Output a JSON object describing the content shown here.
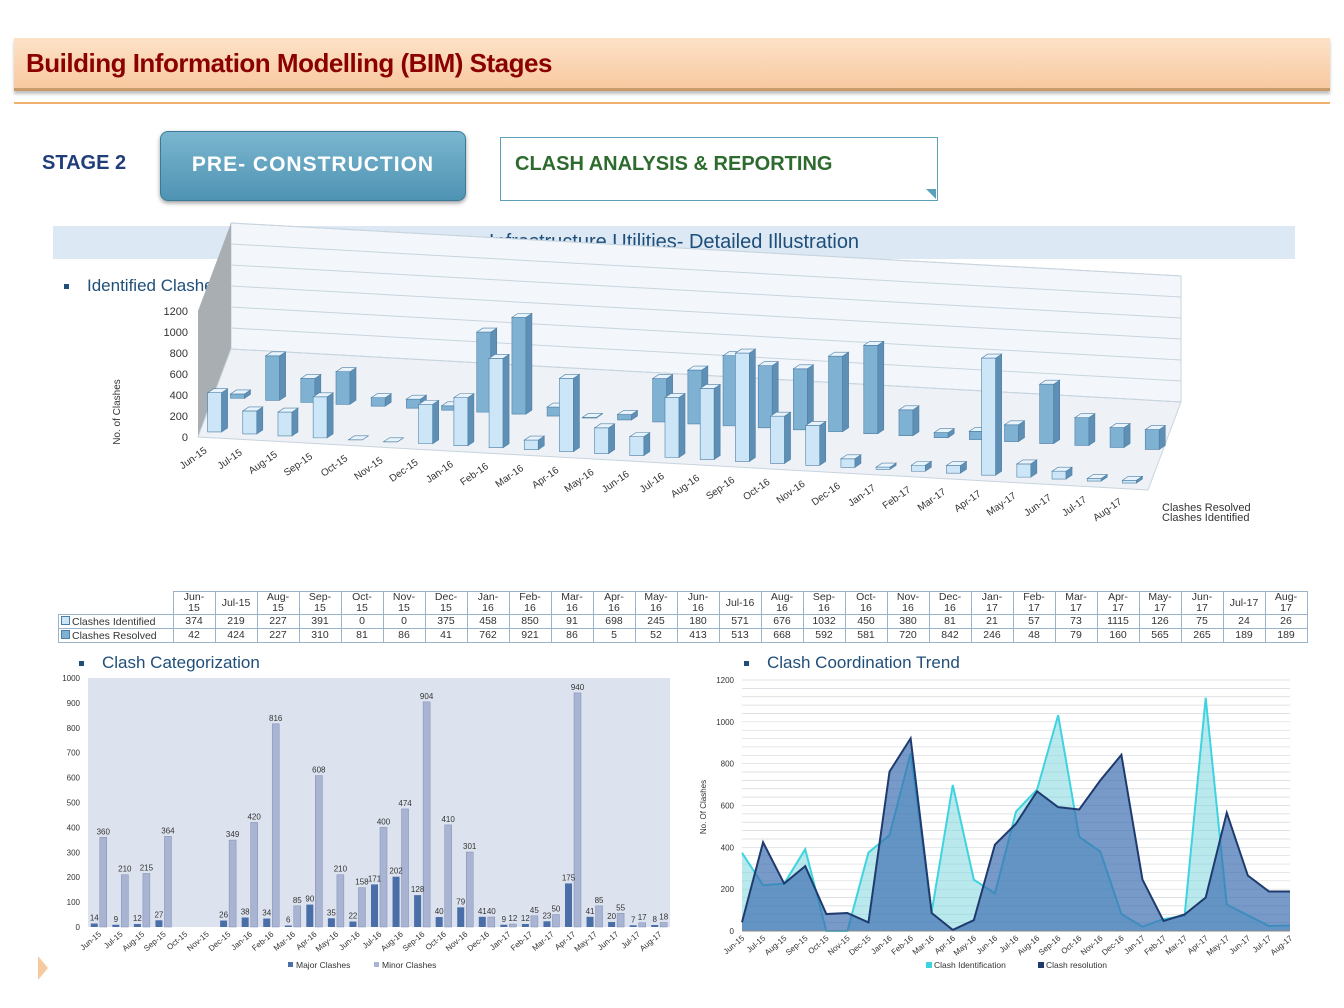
{
  "header": {
    "title": "Building Information Modelling (BIM) Stages"
  },
  "stage": {
    "label": "STAGE 2",
    "button": "PRE- CONSTRUCTION",
    "box": "CLASH ANALYSIS & REPORTING"
  },
  "subheader": "Infrastructure Utilities- Detailed Illustration",
  "sections": {
    "identified": "Identified Clashes",
    "categorization": "Clash Categorization",
    "trend": "Clash Coordination Trend"
  },
  "months": [
    "Jun-15",
    "Jul-15",
    "Aug-15",
    "Sep-15",
    "Oct-15",
    "Nov-15",
    "Dec-15",
    "Jan-16",
    "Feb-16",
    "Mar-16",
    "Apr-16",
    "May-16",
    "Jun-16",
    "Jul-16",
    "Aug-16",
    "Sep-16",
    "Oct-16",
    "Nov-16",
    "Dec-16",
    "Jan-17",
    "Feb-17",
    "Mar-17",
    "Apr-17",
    "May-17",
    "Jun-17",
    "Jul-17",
    "Aug-17"
  ],
  "table": {
    "headers": [
      "Jun-\n15",
      "Jul-15",
      "Aug-\n15",
      "Sep-\n15",
      "Oct-\n15",
      "Nov-\n15",
      "Dec-\n15",
      "Jan-\n16",
      "Feb-\n16",
      "Mar-\n16",
      "Apr-\n16",
      "May-\n16",
      "Jun-\n16",
      "Jul-16",
      "Aug-\n16",
      "Sep-\n16",
      "Oct-\n16",
      "Nov-\n16",
      "Dec-\n16",
      "Jan-\n17",
      "Feb-\n17",
      "Mar-\n17",
      "Apr-\n17",
      "May-\n17",
      "Jun-\n17",
      "Jul-17",
      "Aug-\n17"
    ],
    "rows": [
      {
        "label": "Clashes Identified",
        "values": [
          "374",
          "219",
          "227",
          "391",
          "0",
          "0",
          "375",
          "458",
          "850",
          "91",
          "698",
          "245",
          "180",
          "571",
          "676",
          "1032",
          "450",
          "380",
          "81",
          "21",
          "57",
          "73",
          "1115",
          "126",
          "75",
          "24",
          "26"
        ]
      },
      {
        "label": "Clashes Resolved",
        "values": [
          "42",
          "424",
          "227",
          "310",
          "81",
          "86",
          "41",
          "762",
          "921",
          "86",
          "5",
          "52",
          "413",
          "513",
          "668",
          "592",
          "581",
          "720",
          "842",
          "246",
          "48",
          "79",
          "160",
          "565",
          "265",
          "189",
          "189"
        ]
      }
    ]
  },
  "chart_data": [
    {
      "type": "bar",
      "ylabel": "No. of Clashes",
      "ylim": [
        0,
        1200
      ],
      "yticks": [
        "0",
        "200",
        "400",
        "600",
        "800",
        "1000",
        "1200"
      ],
      "categories": [
        "Jun-15",
        "Jul-15",
        "Aug-15",
        "Sep-15",
        "Oct-15",
        "Nov-15",
        "Dec-15",
        "Jan-16",
        "Feb-16",
        "Mar-16",
        "Apr-16",
        "May-16",
        "Jun-16",
        "Jul-16",
        "Aug-16",
        "Sep-16",
        "Oct-16",
        "Nov-16",
        "Dec-16",
        "Jan-17",
        "Feb-17",
        "Mar-17",
        "Apr-17",
        "May-17",
        "Jun-17",
        "Jul-17",
        "Aug-17"
      ],
      "series": [
        {
          "name": "Clashes Identified",
          "color": "#cde6f7",
          "values": [
            374,
            219,
            227,
            391,
            0,
            0,
            375,
            458,
            850,
            91,
            698,
            245,
            180,
            571,
            676,
            1032,
            450,
            380,
            81,
            21,
            57,
            73,
            1115,
            126,
            75,
            24,
            26
          ]
        },
        {
          "name": "Clashes Resolved",
          "color": "#7fb1d3",
          "values": [
            42,
            424,
            227,
            310,
            81,
            86,
            41,
            762,
            921,
            86,
            5,
            52,
            413,
            513,
            668,
            592,
            581,
            720,
            842,
            246,
            48,
            79,
            160,
            565,
            265,
            189,
            189
          ]
        }
      ],
      "legend": "right"
    },
    {
      "type": "bar",
      "ylim": [
        0,
        1000
      ],
      "yticks": [
        "0",
        "100",
        "200",
        "300",
        "400",
        "500",
        "600",
        "700",
        "800",
        "900",
        "1000"
      ],
      "categories": [
        "Jun-15",
        "Jul-15",
        "Aug-15",
        "Sep-15",
        "Oct-15",
        "Nov-15",
        "Dec-15",
        "Jan-16",
        "Feb-16",
        "Mar-16",
        "Apr-16",
        "May-16",
        "Jun-16",
        "Jul-16",
        "Aug-16",
        "Sep-16",
        "Oct-16",
        "Nov-16",
        "Dec-16",
        "Jan-17",
        "Feb-17",
        "Mar-17",
        "Apr-17",
        "May-17",
        "Jun-17",
        "Jul-17",
        "Aug-17"
      ],
      "series": [
        {
          "name": "Major Clashes",
          "color": "#4a6ea8",
          "values": [
            14,
            9,
            12,
            27,
            0,
            0,
            26,
            38,
            34,
            6,
            90,
            35,
            22,
            171,
            202,
            128,
            40,
            79,
            41,
            9,
            12,
            23,
            175,
            41,
            20,
            7,
            8
          ]
        },
        {
          "name": "Minor Clashes",
          "color": "#a9b4d3",
          "values": [
            360,
            210,
            215,
            364,
            0,
            0,
            349,
            420,
            816,
            85,
            608,
            210,
            158,
            400,
            474,
            904,
            410,
            301,
            40,
            12,
            45,
            50,
            940,
            85,
            55,
            17,
            18
          ]
        }
      ],
      "labels": [
        {
          "major": "14",
          "minor": "360"
        },
        {
          "major": "9",
          "minor": "210"
        },
        {
          "major": "12",
          "minor": "215"
        },
        {
          "major": "27",
          "minor": "364"
        },
        {
          "major": "",
          "minor": ""
        },
        {
          "major": "",
          "minor": ""
        },
        {
          "major": "26",
          "minor": "349"
        },
        {
          "major": "38",
          "minor": "420"
        },
        {
          "major": "34",
          "minor": "816"
        },
        {
          "major": "6",
          "minor": "85"
        },
        {
          "major": "90",
          "minor": "608"
        },
        {
          "major": "35",
          "minor": "210"
        },
        {
          "major": "22",
          "minor": "158"
        },
        {
          "major": "171",
          "minor": "400"
        },
        {
          "major": "202",
          "minor": "474"
        },
        {
          "major": "128",
          "minor": "904"
        },
        {
          "major": "40",
          "minor": "410"
        },
        {
          "major": "79",
          "minor": "301"
        },
        {
          "major": "41",
          "minor": "40"
        },
        {
          "major": "9",
          "minor": "12"
        },
        {
          "major": "12",
          "minor": "45"
        },
        {
          "major": "23",
          "minor": "50"
        },
        {
          "major": "175",
          "minor": "940"
        },
        {
          "major": "41",
          "minor": "85"
        },
        {
          "major": "20",
          "minor": "55"
        },
        {
          "major": "7",
          "minor": "17"
        },
        {
          "major": "8",
          "minor": "18"
        }
      ],
      "legend": "bottom"
    },
    {
      "type": "area",
      "ylabel": "No. Of Clashes",
      "ylim": [
        0,
        1200
      ],
      "yticks": [
        "0",
        "200",
        "400",
        "600",
        "800",
        "1000",
        "1200"
      ],
      "categories": [
        "Jun-15",
        "Jul-15",
        "Aug-15",
        "Sep-15",
        "Oct-15",
        "Nov-15",
        "Dec-15",
        "Jan-16",
        "Feb-16",
        "Mar-16",
        "Apr-16",
        "May-16",
        "Jun-16",
        "Jul-16",
        "Aug-16",
        "Sep-16",
        "Oct-16",
        "Nov-16",
        "Dec-16",
        "Jan-17",
        "Feb-17",
        "Mar-17",
        "Apr-17",
        "May-17",
        "Jun-17",
        "Jul-17",
        "Aug-17"
      ],
      "series": [
        {
          "name": "Clash Identification",
          "color": "#3fd3e0",
          "values": [
            374,
            219,
            227,
            391,
            0,
            0,
            375,
            458,
            850,
            91,
            698,
            245,
            180,
            571,
            676,
            1032,
            450,
            380,
            81,
            21,
            57,
            73,
            1115,
            126,
            75,
            24,
            26
          ]
        },
        {
          "name": "Clash resolution",
          "color": "#1f3b6e",
          "values": [
            42,
            424,
            227,
            310,
            81,
            86,
            41,
            762,
            921,
            86,
            5,
            52,
            413,
            513,
            668,
            592,
            581,
            720,
            842,
            246,
            48,
            79,
            160,
            565,
            265,
            189,
            189
          ]
        }
      ],
      "grid": true,
      "legend": "bottom"
    }
  ]
}
